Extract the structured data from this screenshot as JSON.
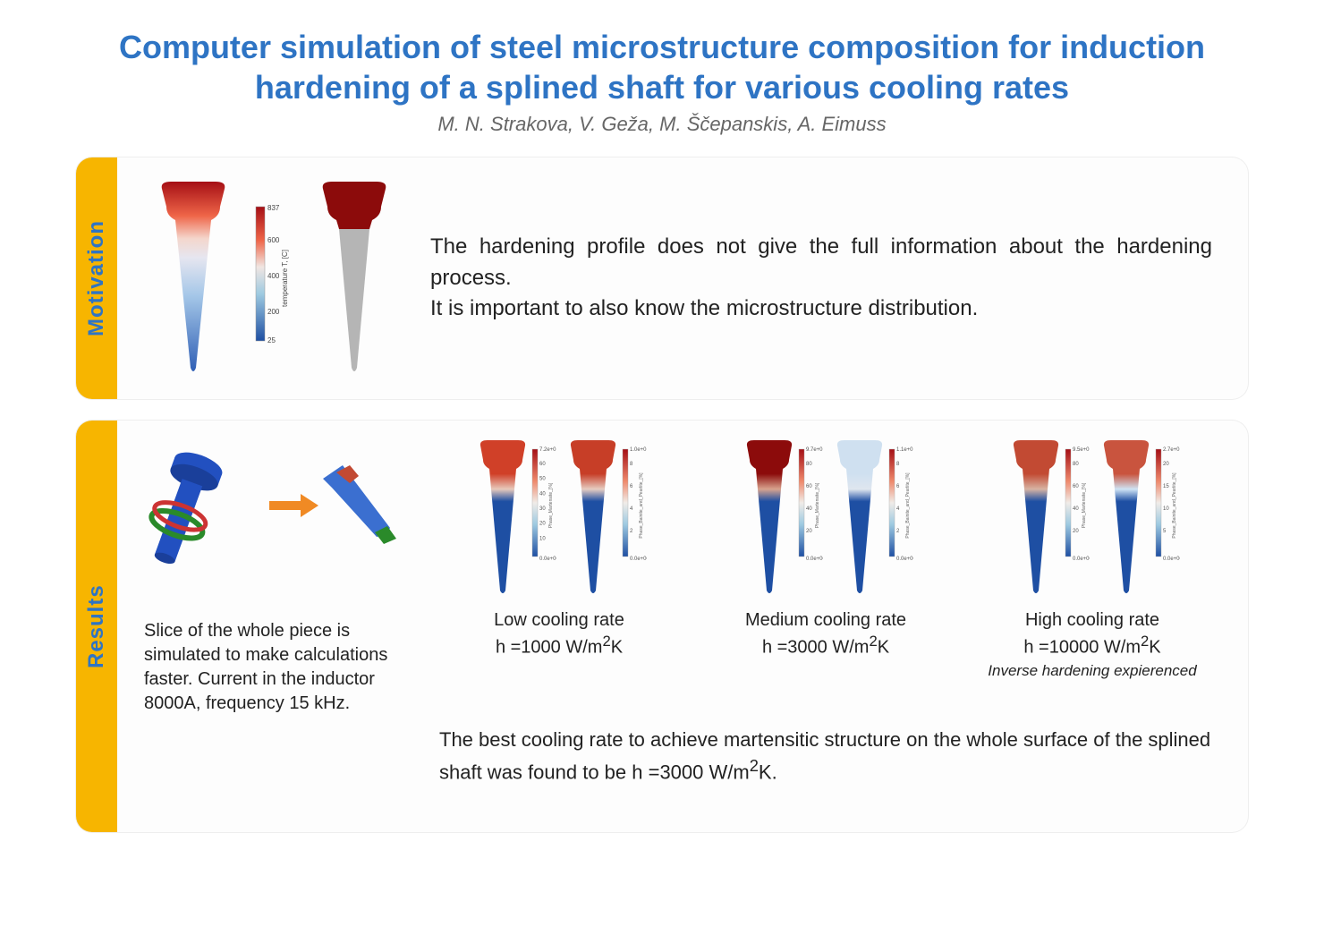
{
  "title": "Computer simulation of steel microstructure composition for induction hardening of a splined shaft for various cooling rates",
  "authors": "M. N. Strakova, V. Geža, M. Ščepanskis, A. Eimuss",
  "motivation": {
    "tab": "Motivation",
    "text_line1": "The hardening profile does not give the full information about the hardening process.",
    "text_line2": "It is important to also know the microstructure distribution.",
    "temperature_scale": {
      "max": "837",
      "mid1": "600",
      "mid2": "400",
      "mid3": "200",
      "min": "25",
      "axis_label": "temperature T, [C]",
      "colors_top_to_bottom": [
        "#a50f15",
        "#ef3b2c",
        "#fcae91",
        "#e8e8f4",
        "#9ecae1",
        "#4292c6",
        "#1e4fa3"
      ]
    },
    "tooth_left": {
      "top_color": "#a50f15",
      "mid_color": "#e8c0b8",
      "bottom_color": "#3d6fc7"
    },
    "tooth_right": {
      "top_color": "#8c0b0b",
      "bottom_color": "#b5b5b5"
    }
  },
  "results": {
    "tab": "Results",
    "geometry_caption": "Slice of the whole piece is simulated to make calculations faster. Current in the inductor 8000A, frequency 15 kHz.",
    "geometry_colors": {
      "shaft": "#2250c0",
      "coil": "#2a8a2a",
      "ring": "#c33",
      "arrow": "#f08a24"
    },
    "rate_groups": [
      {
        "title": "Low cooling rate",
        "h_line": "h =1000 W/m",
        "h_exp": "2",
        "h_unit": "K",
        "note": "",
        "left": {
          "top": "#d04028",
          "mid": "#e7c9bb",
          "body": "#1e4fa3",
          "scale_max": "7.2e+01",
          "scale_min": "0.0e+00",
          "scale_label": "Phase_Martensite_[%]",
          "ticks": [
            "60",
            "50",
            "40",
            "30",
            "20",
            "10"
          ]
        },
        "right": {
          "top": "#c73e27",
          "mid": "#e6ccc1",
          "body": "#1e4fa3",
          "scale_max": "1.0e+01",
          "scale_min": "0.0e+00",
          "scale_label": "Phase_Bainite_and_Pearlite_[%]",
          "ticks": [
            "8",
            "6",
            "4",
            "2"
          ]
        }
      },
      {
        "title": "Medium cooling rate",
        "h_line": "h =3000 W/m",
        "h_exp": "2",
        "h_unit": "K",
        "note": "",
        "left": {
          "top": "#8c0b0b",
          "mid": "#d8a38e",
          "body": "#1e4fa3",
          "scale_max": "9.7e+01",
          "scale_min": "0.0e+00",
          "scale_label": "Phase_Martensite_[%]",
          "ticks": [
            "80",
            "60",
            "40",
            "20"
          ]
        },
        "right": {
          "top": "#cfe0f0",
          "mid": "#dfe6ef",
          "body": "#1e4fa3",
          "scale_max": "1.1e+01",
          "scale_min": "0.0e+00",
          "scale_label": "Phase_Bainite_and_Pearlite_[%]",
          "ticks": [
            "8",
            "6",
            "4",
            "2"
          ]
        }
      },
      {
        "title": "High cooling rate",
        "h_line": "h =10000 W/m",
        "h_exp": "2",
        "h_unit": "K",
        "note": "Inverse hardening expierenced",
        "left": {
          "top": "#c24a33",
          "mid": "#d7b3a3",
          "body": "#1e4fa3",
          "scale_max": "9.5e+01",
          "scale_min": "0.0e+00",
          "scale_label": "Phase_Martensite_[%]",
          "ticks": [
            "80",
            "60",
            "40",
            "20"
          ]
        },
        "right": {
          "top": "#c9543e",
          "mid": "#cfe3f4",
          "body": "#1e4fa3",
          "scale_max": "2.7e+01",
          "scale_min": "0.0e+00",
          "scale_label": "Phase_Bainite_and_Pearlite_[%]",
          "ticks": [
            "20",
            "15",
            "10",
            "5"
          ]
        }
      }
    ],
    "conclusion_pre": "The best cooling rate to achieve martensitic structure on the whole surface of the splined shaft was found to be h =3000 W/m",
    "conclusion_exp": "2",
    "conclusion_post": "K."
  }
}
